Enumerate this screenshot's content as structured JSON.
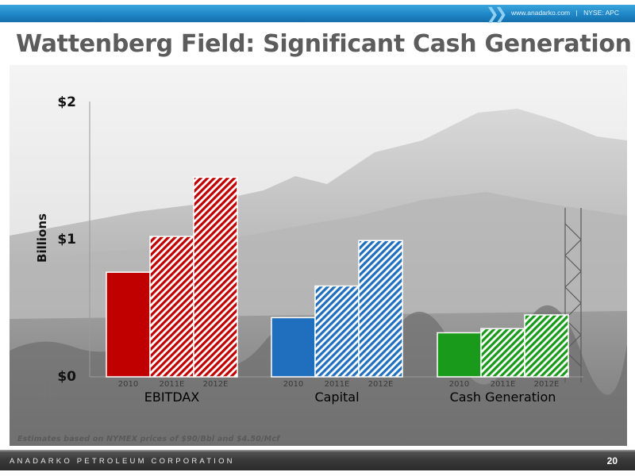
{
  "header": {
    "site": "www.anadarko.com",
    "separator": "|",
    "ticker": "NYSE: APC"
  },
  "slide_title": "Wattenberg Field: Significant Cash Generation",
  "footnote": "Estimates based on NYMEX prices of $90/Bbl and $4.50/Mcf",
  "footer": {
    "company": "ANADARKO PETROLEUM CORPORATION",
    "page": "20"
  },
  "colors": {
    "header_band": "#1f86c7",
    "title_text": "#5c5c5c",
    "footer_band": "#333333",
    "ebitdax": "#c00000",
    "capital": "#1f6fbe",
    "cash_generation": "#1a9a1a"
  },
  "chart_data": {
    "type": "bar",
    "ylabel": "Billions",
    "ylim": [
      0,
      2
    ],
    "y_ticks": [
      "$0",
      "$1",
      "$2"
    ],
    "grid": false,
    "groups": [
      {
        "name": "EBITDAX",
        "color": "#c00000",
        "bars": [
          {
            "year": "2010",
            "value": 0.76,
            "fill": "solid"
          },
          {
            "year": "2011E",
            "value": 1.02,
            "fill": "hatched"
          },
          {
            "year": "2012E",
            "value": 1.45,
            "fill": "hatched"
          }
        ]
      },
      {
        "name": "Capital",
        "color": "#1f6fbe",
        "bars": [
          {
            "year": "2010",
            "value": 0.43,
            "fill": "solid"
          },
          {
            "year": "2011E",
            "value": 0.66,
            "fill": "hatched"
          },
          {
            "year": "2012E",
            "value": 0.99,
            "fill": "hatched"
          }
        ]
      },
      {
        "name": "Cash Generation",
        "color": "#1a9a1a",
        "bars": [
          {
            "year": "2010",
            "value": 0.32,
            "fill": "solid"
          },
          {
            "year": "2011E",
            "value": 0.35,
            "fill": "hatched"
          },
          {
            "year": "2012E",
            "value": 0.45,
            "fill": "hatched"
          }
        ]
      }
    ]
  }
}
